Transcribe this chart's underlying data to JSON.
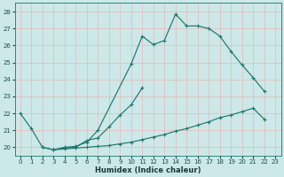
{
  "xlabel": "Humidex (Indice chaleur)",
  "xlim": [
    -0.5,
    23.5
  ],
  "ylim": [
    19.5,
    28.5
  ],
  "xticks": [
    0,
    1,
    2,
    3,
    4,
    5,
    6,
    7,
    8,
    9,
    10,
    11,
    12,
    13,
    14,
    15,
    16,
    17,
    18,
    19,
    20,
    21,
    22,
    23
  ],
  "yticks": [
    20,
    21,
    22,
    23,
    24,
    25,
    26,
    27,
    28
  ],
  "bg_color": "#cde8e8",
  "line_color": "#1a7a6e",
  "grid_color": "#e8b8b8",
  "curve1_x": [
    0,
    1,
    2,
    3,
    4,
    5,
    6,
    7,
    10,
    11,
    12,
    13,
    14,
    15,
    16,
    17,
    18,
    19,
    20,
    21,
    22
  ],
  "curve1_y": [
    22.0,
    21.1,
    20.0,
    19.85,
    20.0,
    20.05,
    20.3,
    21.0,
    24.9,
    26.55,
    26.05,
    26.3,
    27.85,
    27.15,
    27.15,
    27.0,
    26.55,
    25.65,
    24.85,
    24.1,
    23.3
  ],
  "curve2_x": [
    2,
    3,
    4,
    5,
    6,
    7,
    8,
    9,
    10,
    11
  ],
  "curve2_y": [
    20.0,
    19.85,
    19.95,
    20.0,
    20.4,
    20.55,
    21.2,
    21.9,
    22.5,
    23.5
  ],
  "curve3_x": [
    3,
    4,
    5,
    6,
    7,
    8,
    9,
    10,
    11,
    12,
    13,
    14,
    15,
    16,
    17,
    18,
    19,
    20,
    21,
    22
  ],
  "curve3_y": [
    19.85,
    19.9,
    19.95,
    20.0,
    20.05,
    20.1,
    20.2,
    20.3,
    20.45,
    20.6,
    20.75,
    20.95,
    21.1,
    21.3,
    21.5,
    21.75,
    21.9,
    22.1,
    22.3,
    21.65
  ]
}
